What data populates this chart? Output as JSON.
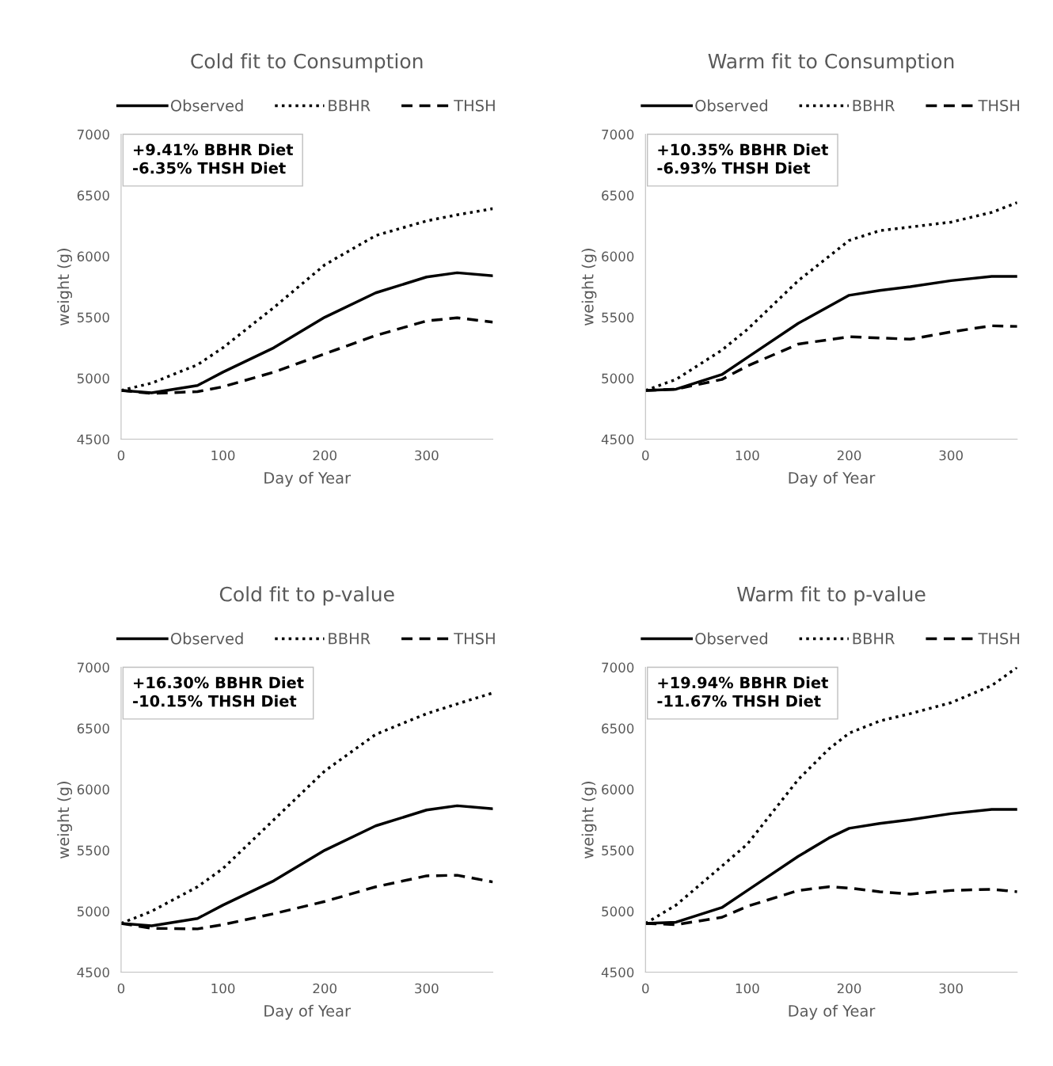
{
  "chart_data": [
    {
      "type": "line",
      "title": "Cold fit to Consumption",
      "xlabel": "Day of Year",
      "ylabel": "weight (g)",
      "xlim": [
        0,
        365
      ],
      "xticks": [
        0,
        100,
        200,
        300
      ],
      "ylim": [
        4500,
        7000
      ],
      "yticks": [
        4500,
        5000,
        5500,
        6000,
        6500,
        7000
      ],
      "grid": false,
      "legend": "top",
      "marker": "none",
      "annotations": [
        "+9.41% BBHR Diet\n-6.35% THSH Diet"
      ],
      "x": [
        0,
        30,
        75,
        100,
        150,
        200,
        250,
        300,
        330,
        365
      ],
      "series": [
        {
          "name": "Observed",
          "color": "#000000",
          "line_style": "solid",
          "values": [
            4900,
            4880,
            4940,
            5050,
            5250,
            5500,
            5700,
            5830,
            5865,
            5840
          ]
        },
        {
          "name": "BBHR",
          "color": "#000000",
          "line_style": "dotted",
          "values": [
            4900,
            4960,
            5110,
            5250,
            5580,
            5930,
            6170,
            6290,
            6340,
            6390
          ]
        },
        {
          "name": "THSH",
          "color": "#000000",
          "line_style": "dashed",
          "values": [
            4900,
            4875,
            4890,
            4930,
            5050,
            5200,
            5350,
            5470,
            5495,
            5460
          ]
        }
      ]
    },
    {
      "type": "line",
      "title": "Warm fit to Consumption",
      "xlabel": "Day of Year",
      "ylabel": "weight (g)",
      "xlim": [
        0,
        365
      ],
      "xticks": [
        0,
        100,
        200,
        300
      ],
      "ylim": [
        4500,
        7000
      ],
      "yticks": [
        4500,
        5000,
        5500,
        6000,
        6500,
        7000
      ],
      "grid": false,
      "legend": "top",
      "marker": "none",
      "annotations": [
        "+10.35% BBHR Diet\n-6.93% THSH Diet"
      ],
      "x": [
        0,
        30,
        75,
        100,
        150,
        200,
        230,
        260,
        300,
        340,
        365
      ],
      "series": [
        {
          "name": "Observed",
          "color": "#000000",
          "line_style": "solid",
          "values": [
            4900,
            4910,
            5030,
            5170,
            5450,
            5680,
            5720,
            5750,
            5800,
            5835,
            5835
          ]
        },
        {
          "name": "BBHR",
          "color": "#000000",
          "line_style": "dotted",
          "values": [
            4900,
            4990,
            5230,
            5400,
            5800,
            6130,
            6210,
            6240,
            6280,
            6360,
            6440
          ]
        },
        {
          "name": "THSH",
          "color": "#000000",
          "line_style": "dashed",
          "values": [
            4900,
            4910,
            4990,
            5100,
            5280,
            5340,
            5330,
            5320,
            5380,
            5430,
            5425
          ]
        }
      ]
    },
    {
      "type": "line",
      "title": "Cold fit to p-value",
      "xlabel": "Day of Year",
      "ylabel": "weight (g)",
      "xlim": [
        0,
        365
      ],
      "xticks": [
        0,
        100,
        200,
        300
      ],
      "ylim": [
        4500,
        7000
      ],
      "yticks": [
        4500,
        5000,
        5500,
        6000,
        6500,
        7000
      ],
      "grid": false,
      "legend": "top",
      "marker": "none",
      "annotations": [
        "+16.30% BBHR Diet\n-10.15% THSH Diet"
      ],
      "x": [
        0,
        30,
        75,
        100,
        150,
        200,
        250,
        300,
        330,
        365
      ],
      "series": [
        {
          "name": "Observed",
          "color": "#000000",
          "line_style": "solid",
          "values": [
            4900,
            4880,
            4940,
            5050,
            5250,
            5500,
            5700,
            5830,
            5865,
            5840
          ]
        },
        {
          "name": "BBHR",
          "color": "#000000",
          "line_style": "dotted",
          "values": [
            4900,
            5000,
            5200,
            5350,
            5750,
            6150,
            6450,
            6620,
            6700,
            6790
          ]
        },
        {
          "name": "THSH",
          "color": "#000000",
          "line_style": "dashed",
          "values": [
            4900,
            4860,
            4855,
            4890,
            4980,
            5080,
            5200,
            5290,
            5295,
            5240
          ]
        }
      ]
    },
    {
      "type": "line",
      "title": "Warm fit to p-value",
      "xlabel": "Day of Year",
      "ylabel": "weight (g)",
      "xlim": [
        0,
        365
      ],
      "xticks": [
        0,
        100,
        200,
        300
      ],
      "ylim": [
        4500,
        7000
      ],
      "yticks": [
        4500,
        5000,
        5500,
        6000,
        6500,
        7000
      ],
      "grid": false,
      "legend": "top",
      "marker": "none",
      "annotations": [
        "+19.94% BBHR Diet\n-11.67% THSH Diet"
      ],
      "x": [
        0,
        30,
        75,
        100,
        150,
        180,
        200,
        230,
        260,
        300,
        340,
        365
      ],
      "series": [
        {
          "name": "Observed",
          "color": "#000000",
          "line_style": "solid",
          "values": [
            4900,
            4910,
            5030,
            5170,
            5450,
            5600,
            5680,
            5720,
            5750,
            5800,
            5835,
            5835
          ]
        },
        {
          "name": "BBHR",
          "color": "#000000",
          "line_style": "dotted",
          "values": [
            4900,
            5050,
            5370,
            5550,
            6080,
            6330,
            6460,
            6560,
            6620,
            6710,
            6850,
            7000
          ]
        },
        {
          "name": "THSH",
          "color": "#000000",
          "line_style": "dashed",
          "values": [
            4900,
            4890,
            4950,
            5040,
            5170,
            5200,
            5190,
            5160,
            5140,
            5170,
            5180,
            5160
          ]
        }
      ]
    }
  ]
}
